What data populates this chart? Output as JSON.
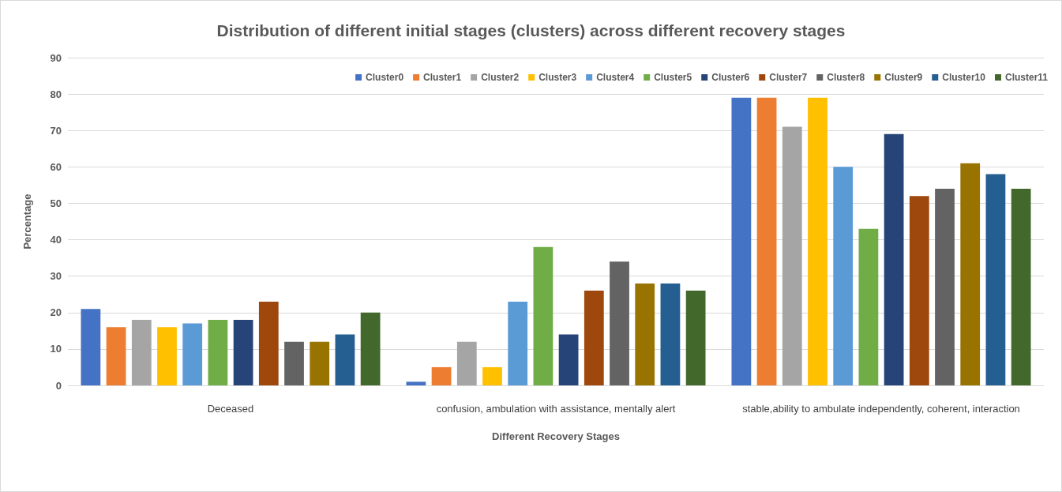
{
  "chart_data": {
    "type": "bar",
    "title": "Distribution of different initial stages (clusters) across different recovery stages",
    "xlabel": "Different Recovery Stages",
    "ylabel": "Percentage",
    "categories": [
      "Deceased",
      "confusion, ambulation with assistance, mentally alert",
      "stable,ability to ambulate independently, coherent, interaction"
    ],
    "series": [
      {
        "name": "Cluster0",
        "color": "#4472c4",
        "values": [
          21,
          1,
          79
        ]
      },
      {
        "name": "Cluster1",
        "color": "#ed7d31",
        "values": [
          16,
          5,
          79
        ]
      },
      {
        "name": "Cluster2",
        "color": "#a5a5a5",
        "values": [
          18,
          12,
          71
        ]
      },
      {
        "name": "Cluster3",
        "color": "#ffc000",
        "values": [
          16,
          5,
          79
        ]
      },
      {
        "name": "Cluster4",
        "color": "#5b9bd5",
        "values": [
          17,
          23,
          60
        ]
      },
      {
        "name": "Cluster5",
        "color": "#70ad47",
        "values": [
          18,
          38,
          43
        ]
      },
      {
        "name": "Cluster6",
        "color": "#264478",
        "values": [
          18,
          14,
          69
        ]
      },
      {
        "name": "Cluster7",
        "color": "#9e480e",
        "values": [
          23,
          26,
          52
        ]
      },
      {
        "name": "Cluster8",
        "color": "#636363",
        "values": [
          12,
          34,
          54
        ]
      },
      {
        "name": "Cluster9",
        "color": "#997300",
        "values": [
          12,
          28,
          61
        ]
      },
      {
        "name": "Cluster10",
        "color": "#255e91",
        "values": [
          14,
          28,
          58
        ]
      },
      {
        "name": "Cluster11",
        "color": "#43682b",
        "values": [
          20,
          26,
          54
        ]
      }
    ],
    "ylim": [
      0,
      90
    ],
    "yticks": [
      0,
      10,
      20,
      30,
      40,
      50,
      60,
      70,
      80,
      90
    ],
    "grid": "y",
    "legend": "top right"
  }
}
